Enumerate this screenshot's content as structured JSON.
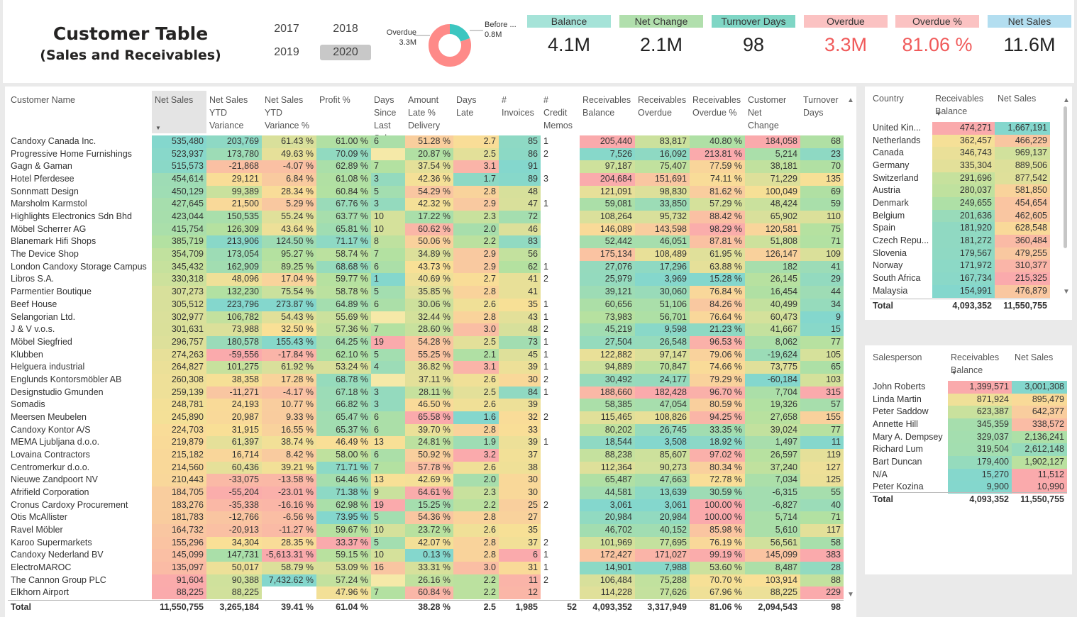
{
  "header": {
    "title_line1": "Customer Table",
    "title_line2": "(Sales and Receivables)"
  },
  "years": [
    {
      "label": "2017",
      "selected": false
    },
    {
      "label": "2018",
      "selected": false
    },
    {
      "label": "2019",
      "selected": false
    },
    {
      "label": "2020",
      "selected": true
    }
  ],
  "donut": {
    "overdue_label": "Overdue",
    "overdue_value": "3.3M",
    "before_label": "Before ...",
    "before_value": "0.8M",
    "overdue_color": "#fe8a88",
    "before_color": "#3cc6c0"
  },
  "cards": [
    {
      "label": "Balance",
      "value": "4.1M",
      "bg": "#a5e3d8",
      "fg": "#222222"
    },
    {
      "label": "Net Change",
      "value": "2.1M",
      "bg": "#b1dfad",
      "fg": "#222222"
    },
    {
      "label": "Turnover Days",
      "value": "98",
      "bg": "#7fd6c5",
      "fg": "#222222"
    },
    {
      "label": "Overdue",
      "value": "3.3M",
      "bg": "#fbc2c2",
      "fg": "#f05a5a"
    },
    {
      "label": "Overdue %",
      "value": "81.06 %",
      "bg": "#fbc2c2",
      "fg": "#f05a5a"
    },
    {
      "label": "Net Sales",
      "value": "11.6M",
      "bg": "#b3def0",
      "fg": "#222222"
    }
  ],
  "customer_table": {
    "columns": [
      "Customer Name",
      "Net Sales",
      "Net Sales\nYTD\nVariance",
      "Net Sales\nYTD\nVariance %",
      "Profit %",
      "Days\nSince\nLast Sale",
      "Amount\nLate %\nDelivery",
      "Days Late",
      "#\nInvoices",
      "#\nCredit\nMemos",
      "Receivables\nBalance",
      "Receivables\nOverdue",
      "Receivables\nOverdue %",
      "Customer\nNet\nChange",
      "Turnover\nDays"
    ],
    "rows": [
      [
        "Candoxy Canada Inc.",
        "535,480",
        "203,769",
        "61.43 %",
        "61.00 %",
        "6",
        "51.28 %",
        "2.7",
        "85",
        "1",
        "205,440",
        "83,817",
        "40.80 %",
        "184,058",
        "68"
      ],
      [
        "Progressive Home Furnishings",
        "523,937",
        "173,780",
        "49.63 %",
        "70.09 %",
        "",
        "20.87 %",
        "2.5",
        "86",
        "2",
        "7,526",
        "16,092",
        "213.81 %",
        "5,214",
        "23"
      ],
      [
        "Gagn & Gaman",
        "515,573",
        "-21,868",
        "-4.07 %",
        "62.89 %",
        "7",
        "37.54 %",
        "3.1",
        "91",
        "",
        "97,187",
        "75,407",
        "77.59 %",
        "38,181",
        "70"
      ],
      [
        "Hotel Pferdesee",
        "454,614",
        "29,121",
        "6.84 %",
        "61.08 %",
        "3",
        "42.36 %",
        "1.7",
        "89",
        "3",
        "204,684",
        "151,691",
        "74.11 %",
        "71,229",
        "135"
      ],
      [
        "Sonnmatt Design",
        "450,129",
        "99,389",
        "28.34 %",
        "60.84 %",
        "5",
        "54.29 %",
        "2.8",
        "48",
        "",
        "121,091",
        "98,830",
        "81.62 %",
        "100,049",
        "69"
      ],
      [
        "Marsholm Karmstol",
        "427,645",
        "21,500",
        "5.29 %",
        "67.76 %",
        "3",
        "42.32 %",
        "2.9",
        "47",
        "1",
        "59,081",
        "33,850",
        "57.29 %",
        "48,424",
        "59"
      ],
      [
        "Highlights Electronics Sdn Bhd",
        "423,044",
        "150,535",
        "55.24 %",
        "63.77 %",
        "10",
        "17.22 %",
        "2.3",
        "72",
        "",
        "108,264",
        "95,732",
        "88.42 %",
        "65,902",
        "110"
      ],
      [
        "Möbel Scherrer AG",
        "415,754",
        "126,309",
        "43.64 %",
        "65.81 %",
        "10",
        "60.62 %",
        "2.0",
        "46",
        "",
        "146,089",
        "143,598",
        "98.29 %",
        "120,581",
        "75"
      ],
      [
        "Blanemark Hifi Shops",
        "385,719",
        "213,906",
        "124.50 %",
        "71.17 %",
        "8",
        "50.06 %",
        "2.2",
        "83",
        "",
        "52,442",
        "46,051",
        "87.81 %",
        "51,808",
        "71"
      ],
      [
        "The Device Shop",
        "354,709",
        "173,054",
        "95.27 %",
        "58.74 %",
        "7",
        "34.89 %",
        "2.9",
        "56",
        "",
        "175,134",
        "108,489",
        "61.95 %",
        "126,147",
        "109"
      ],
      [
        "London Candoxy Storage Campus",
        "345,432",
        "162,909",
        "89.25 %",
        "68.68 %",
        "6",
        "43.73 %",
        "2.9",
        "62",
        "1",
        "27,076",
        "17,296",
        "63.88 %",
        "182",
        "41"
      ],
      [
        "Libros S.A.",
        "330,318",
        "48,096",
        "17.04 %",
        "59.77 %",
        "1",
        "40.69 %",
        "2.7",
        "41",
        "2",
        "25,979",
        "3,969",
        "15.28 %",
        "26,145",
        "29"
      ],
      [
        "Parmentier Boutique",
        "307,273",
        "132,230",
        "75.54 %",
        "58.78 %",
        "5",
        "35.85 %",
        "2.8",
        "41",
        "",
        "39,121",
        "30,060",
        "76.84 %",
        "16,454",
        "44"
      ],
      [
        "Beef House",
        "305,512",
        "223,796",
        "273.87 %",
        "64.89 %",
        "6",
        "30.06 %",
        "2.6",
        "35",
        "1",
        "60,656",
        "51,106",
        "84.26 %",
        "40,499",
        "34"
      ],
      [
        "Selangorian Ltd.",
        "302,977",
        "106,782",
        "54.43 %",
        "55.69 %",
        "",
        "32.44 %",
        "2.8",
        "43",
        "1",
        "73,983",
        "56,701",
        "76.64 %",
        "60,473",
        "9"
      ],
      [
        "J & V v.o.s.",
        "301,631",
        "73,988",
        "32.50 %",
        "57.36 %",
        "7",
        "28.60 %",
        "3.0",
        "48",
        "2",
        "45,219",
        "9,598",
        "21.23 %",
        "41,667",
        "15"
      ],
      [
        "Möbel Siegfried",
        "296,757",
        "180,578",
        "155.43 %",
        "64.25 %",
        "19",
        "54.28 %",
        "2.5",
        "73",
        "1",
        "27,504",
        "26,548",
        "96.53 %",
        "8,062",
        "77"
      ],
      [
        "Klubben",
        "274,263",
        "-59,556",
        "-17.84 %",
        "62.10 %",
        "5",
        "55.25 %",
        "2.1",
        "45",
        "1",
        "122,882",
        "97,147",
        "79.06 %",
        "-19,624",
        "105"
      ],
      [
        "Helguera industrial",
        "264,827",
        "101,275",
        "61.92 %",
        "53.24 %",
        "4",
        "36.82 %",
        "3.1",
        "39",
        "1",
        "94,889",
        "70,847",
        "74.66 %",
        "73,775",
        "65"
      ],
      [
        "Englunds Kontorsmöbler AB",
        "260,308",
        "38,358",
        "17.28 %",
        "68.78 %",
        "",
        "37.11 %",
        "2.6",
        "30",
        "2",
        "30,492",
        "24,177",
        "79.29 %",
        "-60,184",
        "103"
      ],
      [
        "Designstudio Gmunden",
        "259,139",
        "-11,271",
        "-4.17 %",
        "67.18 %",
        "3",
        "28.11 %",
        "2.5",
        "84",
        "1",
        "188,660",
        "182,428",
        "96.70 %",
        "7,704",
        "315"
      ],
      [
        "Somadis",
        "248,781",
        "24,193",
        "10.77 %",
        "66.82 %",
        "3",
        "46.50 %",
        "2.6",
        "39",
        "",
        "58,385",
        "47,054",
        "80.59 %",
        "19,326",
        "57"
      ],
      [
        "Meersen Meubelen",
        "245,890",
        "20,987",
        "9.33 %",
        "65.47 %",
        "6",
        "65.58 %",
        "1.6",
        "32",
        "2",
        "115,465",
        "108,826",
        "94.25 %",
        "27,658",
        "155"
      ],
      [
        "Candoxy Kontor A/S",
        "224,703",
        "31,915",
        "16.55 %",
        "65.37 %",
        "6",
        "39.70 %",
        "2.8",
        "33",
        "",
        "80,202",
        "26,745",
        "33.35 %",
        "39,024",
        "77"
      ],
      [
        "MEMA Ljubljana d.o.o.",
        "219,879",
        "61,397",
        "38.74 %",
        "46.49 %",
        "13",
        "24.81 %",
        "1.9",
        "39",
        "1",
        "18,544",
        "3,508",
        "18.92 %",
        "1,497",
        "11"
      ],
      [
        "Lovaina Contractors",
        "215,182",
        "16,714",
        "8.42 %",
        "58.00 %",
        "6",
        "50.92 %",
        "3.2",
        "37",
        "",
        "88,238",
        "85,607",
        "97.02 %",
        "26,597",
        "119"
      ],
      [
        "Centromerkur d.o.o.",
        "214,560",
        "60,436",
        "39.21 %",
        "71.71 %",
        "7",
        "57.78 %",
        "2.6",
        "38",
        "",
        "112,364",
        "90,273",
        "80.34 %",
        "37,240",
        "127"
      ],
      [
        "Nieuwe Zandpoort NV",
        "210,443",
        "-33,075",
        "-13.58 %",
        "64.46 %",
        "13",
        "42.69 %",
        "2.0",
        "30",
        "",
        "65,487",
        "47,663",
        "72.78 %",
        "7,034",
        "125"
      ],
      [
        "Afrifield Corporation",
        "184,705",
        "-55,204",
        "-23.01 %",
        "71.38 %",
        "9",
        "64.61 %",
        "2.3",
        "30",
        "",
        "44,581",
        "13,639",
        "30.59 %",
        "-6,315",
        "55"
      ],
      [
        "Cronus Cardoxy Procurement",
        "183,276",
        "-35,338",
        "-16.16 %",
        "62.98 %",
        "19",
        "15.25 %",
        "2.2",
        "25",
        "2",
        "3,061",
        "3,061",
        "100.00 %",
        "-6,827",
        "40"
      ],
      [
        "Otis McAllister",
        "181,783",
        "-12,766",
        "-6.56 %",
        "73.95 %",
        "5",
        "54.36 %",
        "2.8",
        "27",
        "",
        "20,984",
        "20,984",
        "100.00 %",
        "5,714",
        "71"
      ],
      [
        "Ravel Möbler",
        "164,732",
        "-20,913",
        "-11.27 %",
        "59.67 %",
        "10",
        "23.72 %",
        "2.6",
        "35",
        "",
        "46,702",
        "40,152",
        "85.98 %",
        "5,610",
        "117"
      ],
      [
        "Karoo Supermarkets",
        "155,296",
        "34,304",
        "28.35 %",
        "33.37 %",
        "5",
        "42.07 %",
        "2.8",
        "37",
        "2",
        "101,969",
        "77,695",
        "76.19 %",
        "56,561",
        "58"
      ],
      [
        "Candoxy Nederland BV",
        "145,099",
        "147,731",
        "-5,613.31 %",
        "59.15 %",
        "10",
        "0.13 %",
        "2.8",
        "6",
        "1",
        "172,427",
        "171,027",
        "99.19 %",
        "145,099",
        "383"
      ],
      [
        "ElectroMAROC",
        "135,097",
        "50,017",
        "58.79 %",
        "53.09 %",
        "16",
        "33.31 %",
        "3.0",
        "31",
        "1",
        "14,901",
        "7,988",
        "53.60 %",
        "8,487",
        "28"
      ],
      [
        "The Cannon Group PLC",
        "91,604",
        "90,388",
        "7,432.62 %",
        "57.24 %",
        "",
        "26.16 %",
        "2.2",
        "11",
        "2",
        "106,484",
        "75,288",
        "70.70 %",
        "103,914",
        "88"
      ],
      [
        "Elkhorn Airport",
        "88,225",
        "88,225",
        "",
        "47.96 %",
        "7",
        "60.84 %",
        "2.2",
        "12",
        "",
        "114,228",
        "77,626",
        "67.96 %",
        "88,225",
        "229"
      ]
    ],
    "total": [
      "Total",
      "11,550,755",
      "3,265,184",
      "39.41 %",
      "61.04 %",
      "",
      "38.28 %",
      "2.5",
      "1,985",
      "52",
      "4,093,352",
      "3,317,949",
      "81.06 %",
      "2,094,543",
      "98"
    ]
  },
  "country_table": {
    "columns": [
      "Country",
      "Receivables\nBalance",
      "Net Sales"
    ],
    "rows": [
      [
        "United Kin...",
        "474,271",
        "1,667,191"
      ],
      [
        "Netherlands",
        "362,457",
        "466,229"
      ],
      [
        "Canada",
        "346,743",
        "969,137"
      ],
      [
        "Germany",
        "335,304",
        "889,506"
      ],
      [
        "Switzerland",
        "291,696",
        "877,542"
      ],
      [
        "Austria",
        "280,037",
        "581,850"
      ],
      [
        "Denmark",
        "249,655",
        "454,654"
      ],
      [
        "Belgium",
        "201,636",
        "462,605"
      ],
      [
        "Spain",
        "181,920",
        "628,548"
      ],
      [
        "Czech Repu...",
        "181,272",
        "360,484"
      ],
      [
        "Slovenia",
        "179,567",
        "479,255"
      ],
      [
        "Norway",
        "171,972",
        "310,377"
      ],
      [
        "South Africa",
        "167,734",
        "215,325"
      ],
      [
        "Malaysia",
        "154,991",
        "476,879"
      ]
    ],
    "total": [
      "Total",
      "4,093,352",
      "11,550,755"
    ]
  },
  "salesperson_table": {
    "columns": [
      "Salesperson",
      "Receivables\nBalance",
      "Net Sales"
    ],
    "rows": [
      [
        "John Roberts",
        "1,399,571",
        "3,001,308"
      ],
      [
        "Linda Martin",
        "871,924",
        "895,479"
      ],
      [
        "Peter Saddow",
        "623,387",
        "642,377"
      ],
      [
        "Annette Hill",
        "345,359",
        "338,572"
      ],
      [
        "Mary A. Dempsey",
        "329,037",
        "2,136,241"
      ],
      [
        "Richard Lum",
        "319,504",
        "2,612,148"
      ],
      [
        "Bart Duncan",
        "179,400",
        "1,902,127"
      ],
      [
        "N/A",
        "15,270",
        "11,512"
      ],
      [
        "Peter Kozina",
        "9,900",
        "10,990"
      ]
    ],
    "total": [
      "Total",
      "4,093,352",
      "11,550,755"
    ]
  }
}
